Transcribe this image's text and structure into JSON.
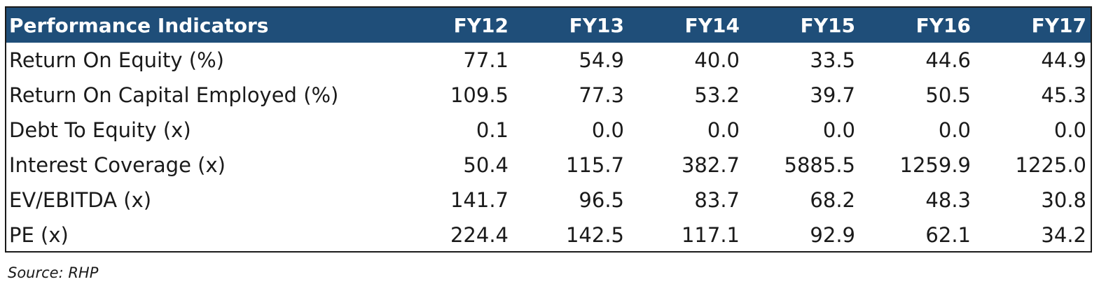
{
  "table": {
    "header": {
      "label": "Performance Indicators",
      "years": [
        "FY12",
        "FY13",
        "FY14",
        "FY15",
        "FY16",
        "FY17"
      ]
    },
    "rows": [
      {
        "label": "Return On Equity (%)",
        "values": [
          "77.1",
          "54.9",
          "40.0",
          "33.5",
          "44.6",
          "44.9"
        ]
      },
      {
        "label": "Return On Capital Employed (%)",
        "values": [
          "109.5",
          "77.3",
          "53.2",
          "39.7",
          "50.5",
          "45.3"
        ]
      },
      {
        "label": "Debt To Equity (x)",
        "values": [
          "0.1",
          "0.0",
          "0.0",
          "0.0",
          "0.0",
          "0.0"
        ]
      },
      {
        "label": "Interest Coverage (x)",
        "values": [
          "50.4",
          "115.7",
          "382.7",
          "5885.5",
          "1259.9",
          "1225.0"
        ]
      },
      {
        "label": "EV/EBITDA (x)",
        "values": [
          "141.7",
          "96.5",
          "83.7",
          "68.2",
          "48.3",
          "30.8"
        ]
      },
      {
        "label": "PE (x)",
        "values": [
          "224.4",
          "142.5",
          "117.1",
          "92.9",
          "62.1",
          "34.2"
        ]
      }
    ]
  },
  "source": "Source: RHP",
  "colors": {
    "header_bg": "#1f4e79",
    "header_text": "#ffffff",
    "border": "#1a1a1a"
  }
}
